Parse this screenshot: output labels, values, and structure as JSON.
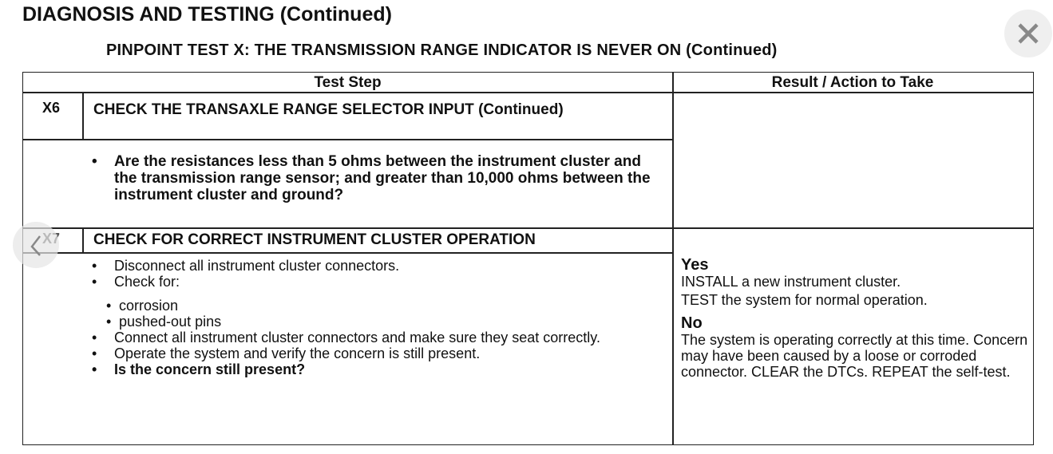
{
  "title": "DIAGNOSIS AND TESTING (Continued)",
  "subtitle": "PINPOINT TEST X: THE TRANSMISSION RANGE INDICATOR IS NEVER ON (Continued)",
  "table": {
    "headers": [
      "Test Step",
      "Result / Action to Take"
    ],
    "steps": [
      {
        "id": "X6",
        "title": "CHECK THE TRANSAXLE RANGE SELECTOR INPUT (Continued)",
        "question": "Are the resistances less than 5 ohms between the instrument cluster and the transmission range sensor; and greater than 10,000 ohms between the instrument cluster and ground?"
      },
      {
        "id": "X7",
        "title": "CHECK FOR CORRECT INSTRUMENT CLUSTER OPERATION",
        "items": [
          "Disconnect all instrument cluster connectors.",
          "Check for:",
          "Connect all instrument cluster connectors and make sure they seat correctly.",
          "Operate the system and verify the concern is still present."
        ],
        "subitems": [
          "corrosion",
          "pushed-out pins"
        ],
        "question": "Is the concern still present?",
        "results": [
          {
            "label": "Yes",
            "lines": [
              "INSTALL a new instrument cluster.",
              "TEST the system for normal operation."
            ]
          },
          {
            "label": "No",
            "text": "The system is operating correctly at this time. Concern may have been caused by a loose or corroded connector. CLEAR the DTCs. REPEAT the self-test."
          }
        ]
      }
    ]
  },
  "viewer": {
    "close_icon": "close-icon",
    "back_icon": "chevron-left-icon"
  }
}
